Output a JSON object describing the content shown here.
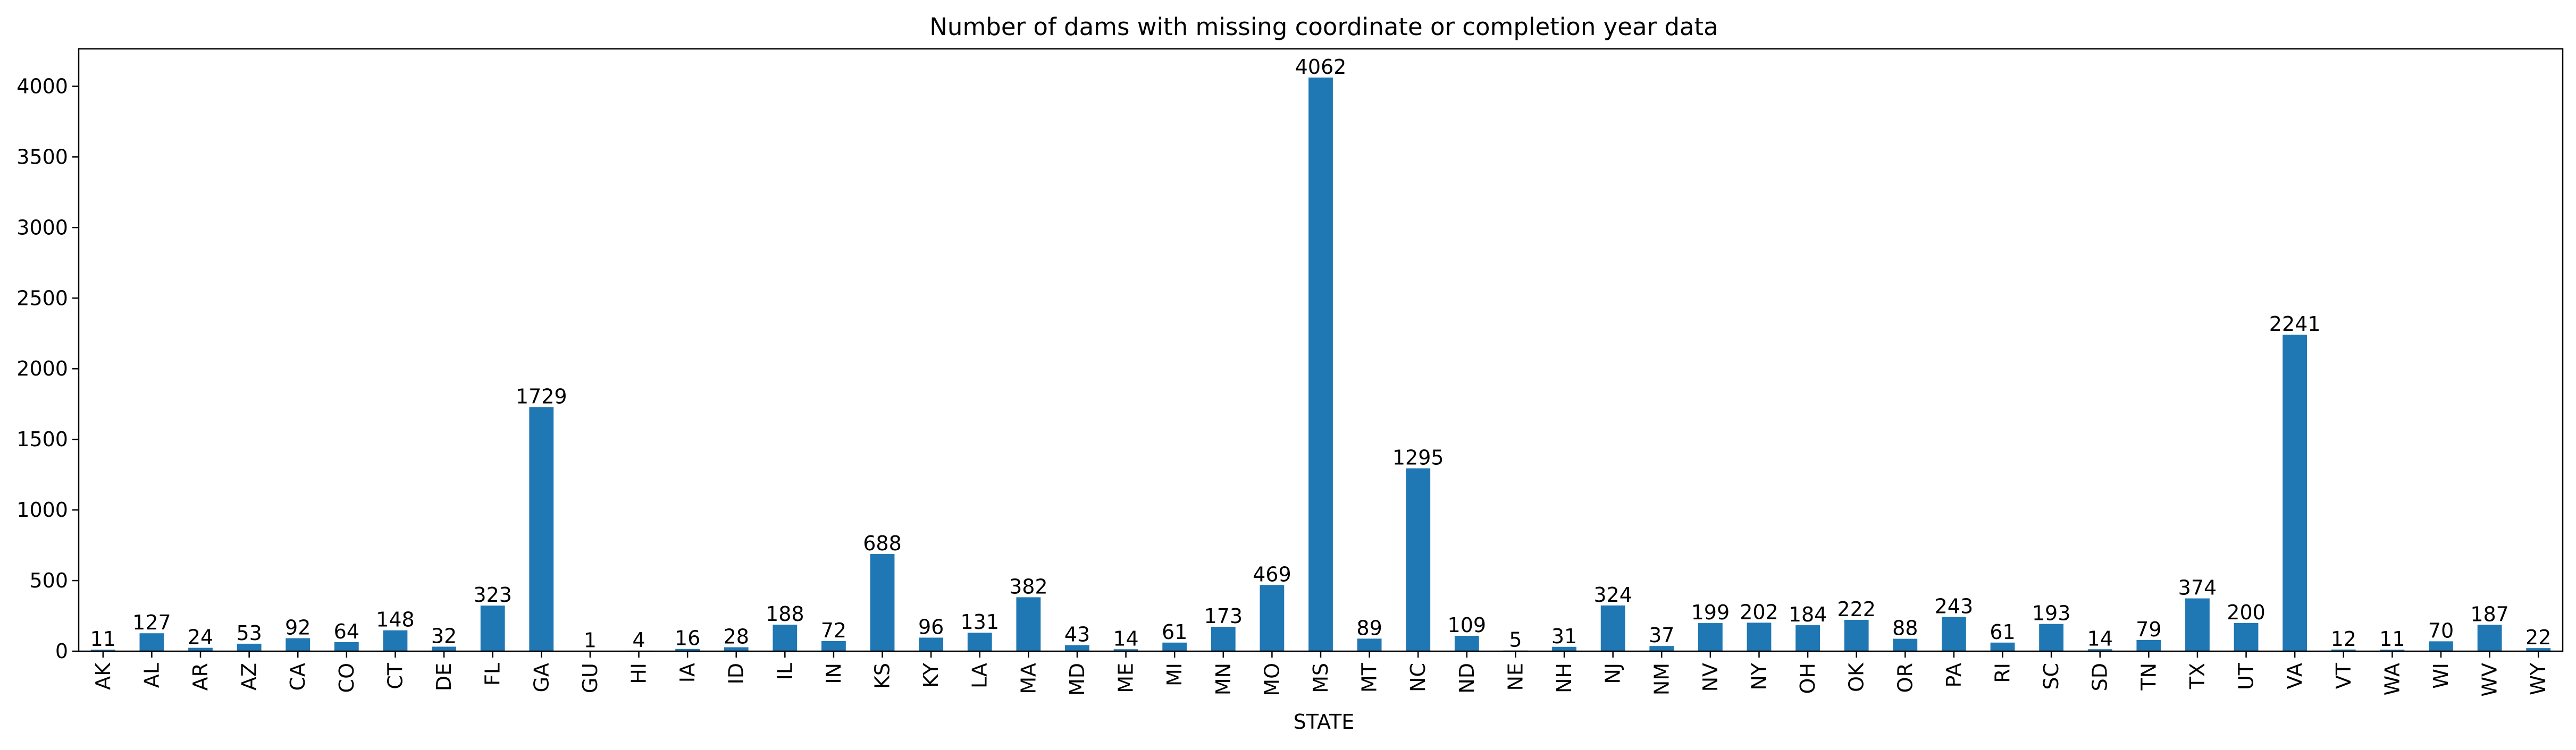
{
  "chart_data": {
    "type": "bar",
    "title": "Number of dams with missing coordinate or completion year data",
    "xlabel": "STATE",
    "ylabel": "",
    "ylim": [
      0,
      4265
    ],
    "yticks": [
      0,
      500,
      1000,
      1500,
      2000,
      2500,
      3000,
      3500,
      4000
    ],
    "grid": false,
    "bar_color": "#1f77b4",
    "categories": [
      "AK",
      "AL",
      "AR",
      "AZ",
      "CA",
      "CO",
      "CT",
      "DE",
      "FL",
      "GA",
      "GU",
      "HI",
      "IA",
      "ID",
      "IL",
      "IN",
      "KS",
      "KY",
      "LA",
      "MA",
      "MD",
      "ME",
      "MI",
      "MN",
      "MO",
      "MS",
      "MT",
      "NC",
      "ND",
      "NE",
      "NH",
      "NJ",
      "NM",
      "NV",
      "NY",
      "OH",
      "OK",
      "OR",
      "PA",
      "RI",
      "SC",
      "SD",
      "TN",
      "TX",
      "UT",
      "VA",
      "VT",
      "WA",
      "WI",
      "WV",
      "WY"
    ],
    "values": [
      11,
      127,
      24,
      53,
      92,
      64,
      148,
      32,
      323,
      1729,
      1,
      4,
      16,
      28,
      188,
      72,
      688,
      96,
      131,
      382,
      43,
      14,
      61,
      173,
      469,
      4062,
      89,
      1295,
      109,
      5,
      31,
      324,
      37,
      199,
      202,
      184,
      222,
      88,
      243,
      61,
      193,
      14,
      79,
      374,
      200,
      2241,
      12,
      11,
      70,
      187,
      22
    ]
  }
}
